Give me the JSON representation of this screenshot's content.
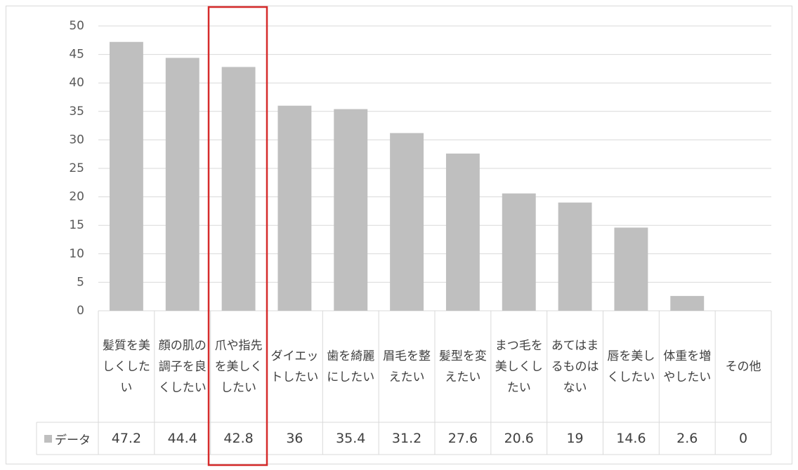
{
  "chart_data": {
    "type": "bar",
    "categories": [
      "髪質を美しくしたい",
      "顔の肌の調子を良くしたい",
      "爪や指先を美しくしたい",
      "ダイエットしたい",
      "歯を綺麗にしたい",
      "眉毛を整えたい",
      "髪型を変えたい",
      "まつ毛を美しくしたい",
      "あてはまるものはない",
      "唇を美しくしたい",
      "体重を増やしたい",
      "その他"
    ],
    "series": [
      {
        "name": "データ",
        "color": "#bfbfbf",
        "values": [
          47.2,
          44.4,
          42.8,
          36,
          35.4,
          31.2,
          27.6,
          20.6,
          19,
          14.6,
          2.6,
          0
        ]
      }
    ],
    "ylim": [
      0,
      50
    ],
    "yticks": [
      0,
      5,
      10,
      15,
      20,
      25,
      30,
      35,
      40,
      45,
      50
    ],
    "grid": true
  }
}
